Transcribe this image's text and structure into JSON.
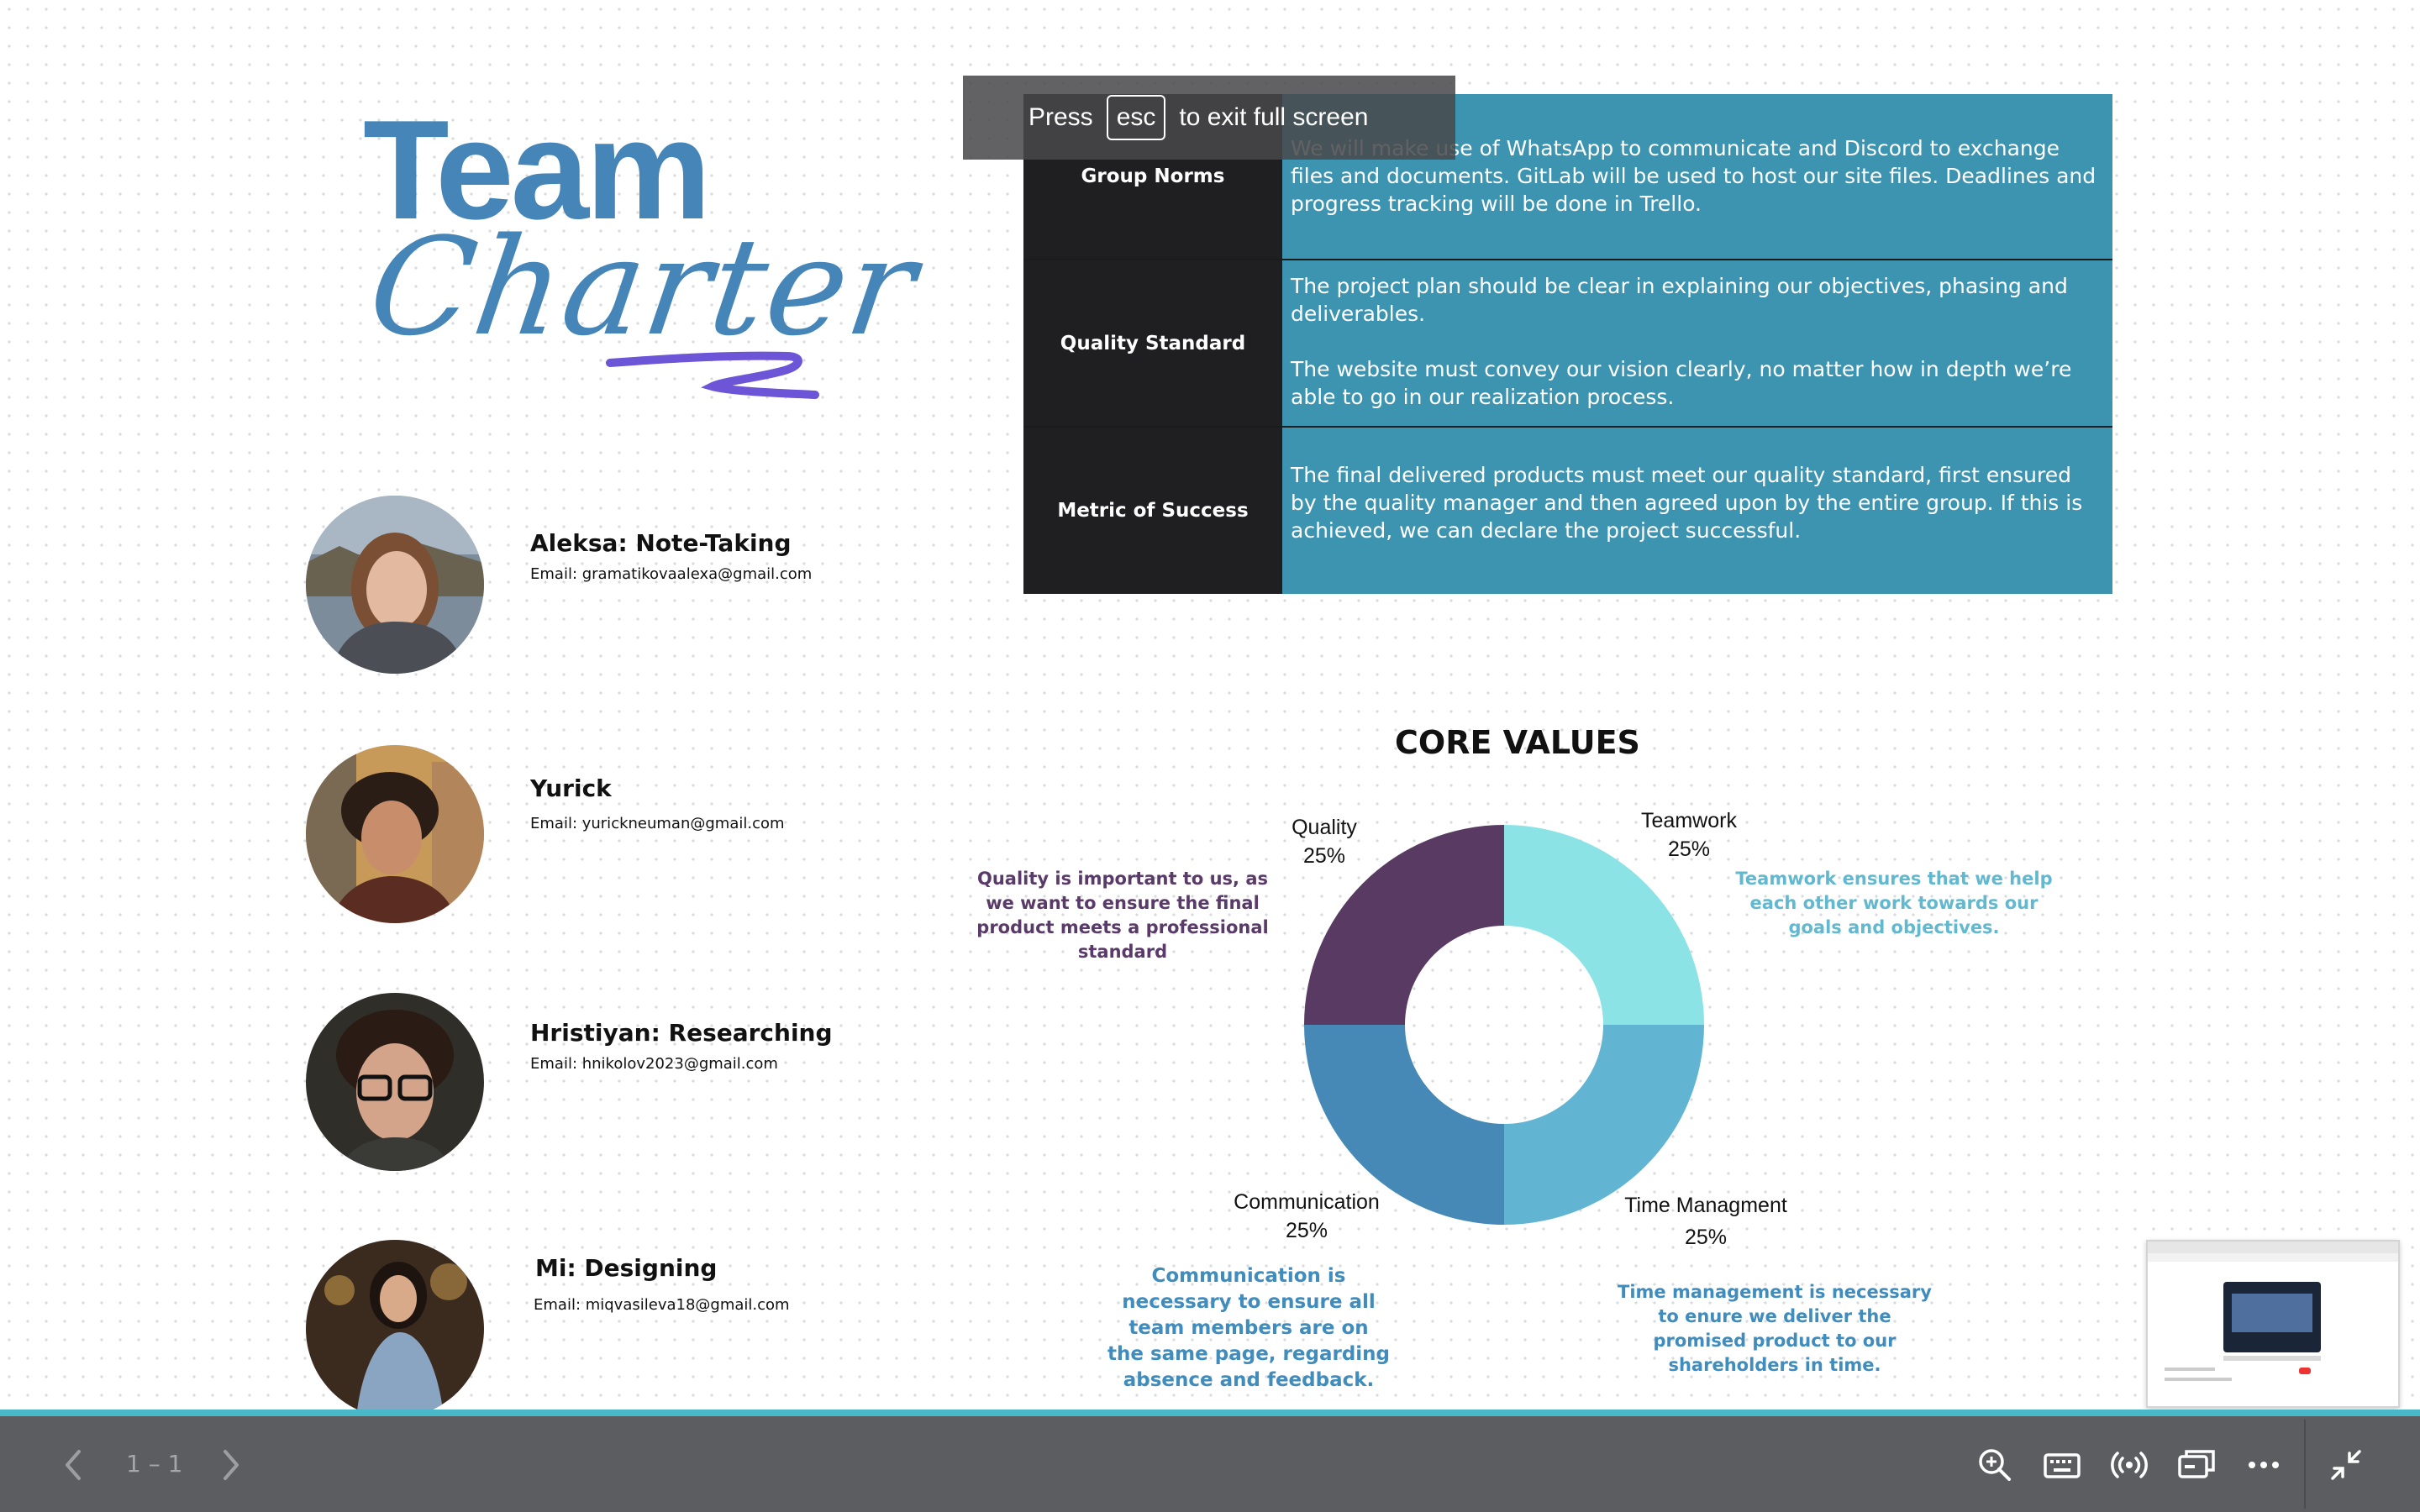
{
  "title": {
    "line1": "Team",
    "line2": "Charter"
  },
  "members": [
    {
      "name": "Aleksa: Note-Taking",
      "email": "Email: gramatikovaalexa@gmail.com"
    },
    {
      "name": "Yurick",
      "email": "Email: yurickneuman@gmail.com"
    },
    {
      "name": "Hristiyan: Researching",
      "email": "Email: hnikolov2023@gmail.com"
    },
    {
      "name": "Mi: Designing",
      "email": "Email: miqvasileva18@gmail.com"
    }
  ],
  "table": {
    "rows": [
      {
        "label": "Group Norms",
        "paragraphs": [
          "We will make use of WhatsApp to communicate and Discord to exchange files and documents. GitLab will be used to host our site files. Deadlines and progress tracking will be done in Trello."
        ]
      },
      {
        "label": "Quality Standard",
        "paragraphs": [
          "The project plan should be clear in explaining our objectives, phasing and deliverables.",
          "The website must convey our vision clearly, no matter how in depth we’re able to go in our realization process."
        ]
      },
      {
        "label": "Metric of Success",
        "paragraphs": [
          "The final delivered products must meet our quality standard, first ensured by the quality manager and then agreed upon by the entire group. If this is achieved, we can declare the project successful."
        ]
      }
    ]
  },
  "toast": {
    "press": "Press",
    "key": "esc",
    "rest": "to exit full screen"
  },
  "core_values": {
    "title": "CORE VALUES",
    "descriptions": {
      "quality": "Quality is important to us, as we want to ensure the final product meets a professional standard",
      "teamwork": "Teamwork ensures that we help each other work towards our goals and objectives.",
      "communication": "Communication is necessary to ensure all team members are on the same page, regarding absence and feedback.",
      "time": "Time management is necessary to enure we deliver the promised product to our shareholders in time."
    }
  },
  "chart_data": {
    "type": "pie",
    "donut": true,
    "title": "CORE VALUES",
    "slices": [
      {
        "label": "Teamwork",
        "value": 25,
        "display": "25%",
        "color": "#8ce3e6"
      },
      {
        "label": "Time Managment",
        "value": 25,
        "display": "25%",
        "color": "#62b5d2"
      },
      {
        "label": "Communication",
        "value": 25,
        "display": "25%",
        "color": "#4689b7"
      },
      {
        "label": "Quality",
        "value": 25,
        "display": "25%",
        "color": "#583a62"
      }
    ]
  },
  "toolbar": {
    "page_indicator": "1 – 1",
    "icons": [
      "chevron-left-icon",
      "chevron-right-icon",
      "zoom-in-icon",
      "keyboard-icon",
      "broadcast-icon",
      "present-window-icon",
      "more-icon",
      "exit-fullscreen-icon"
    ]
  },
  "colors": {
    "title_blue": "#4585b7",
    "table_label_bg": "#1f1f21",
    "table_content_bg": "#3d94b0",
    "accent_purple": "#6c55d6",
    "bar_bg": "#5b5d60",
    "bar_accent": "#49b8c8"
  }
}
